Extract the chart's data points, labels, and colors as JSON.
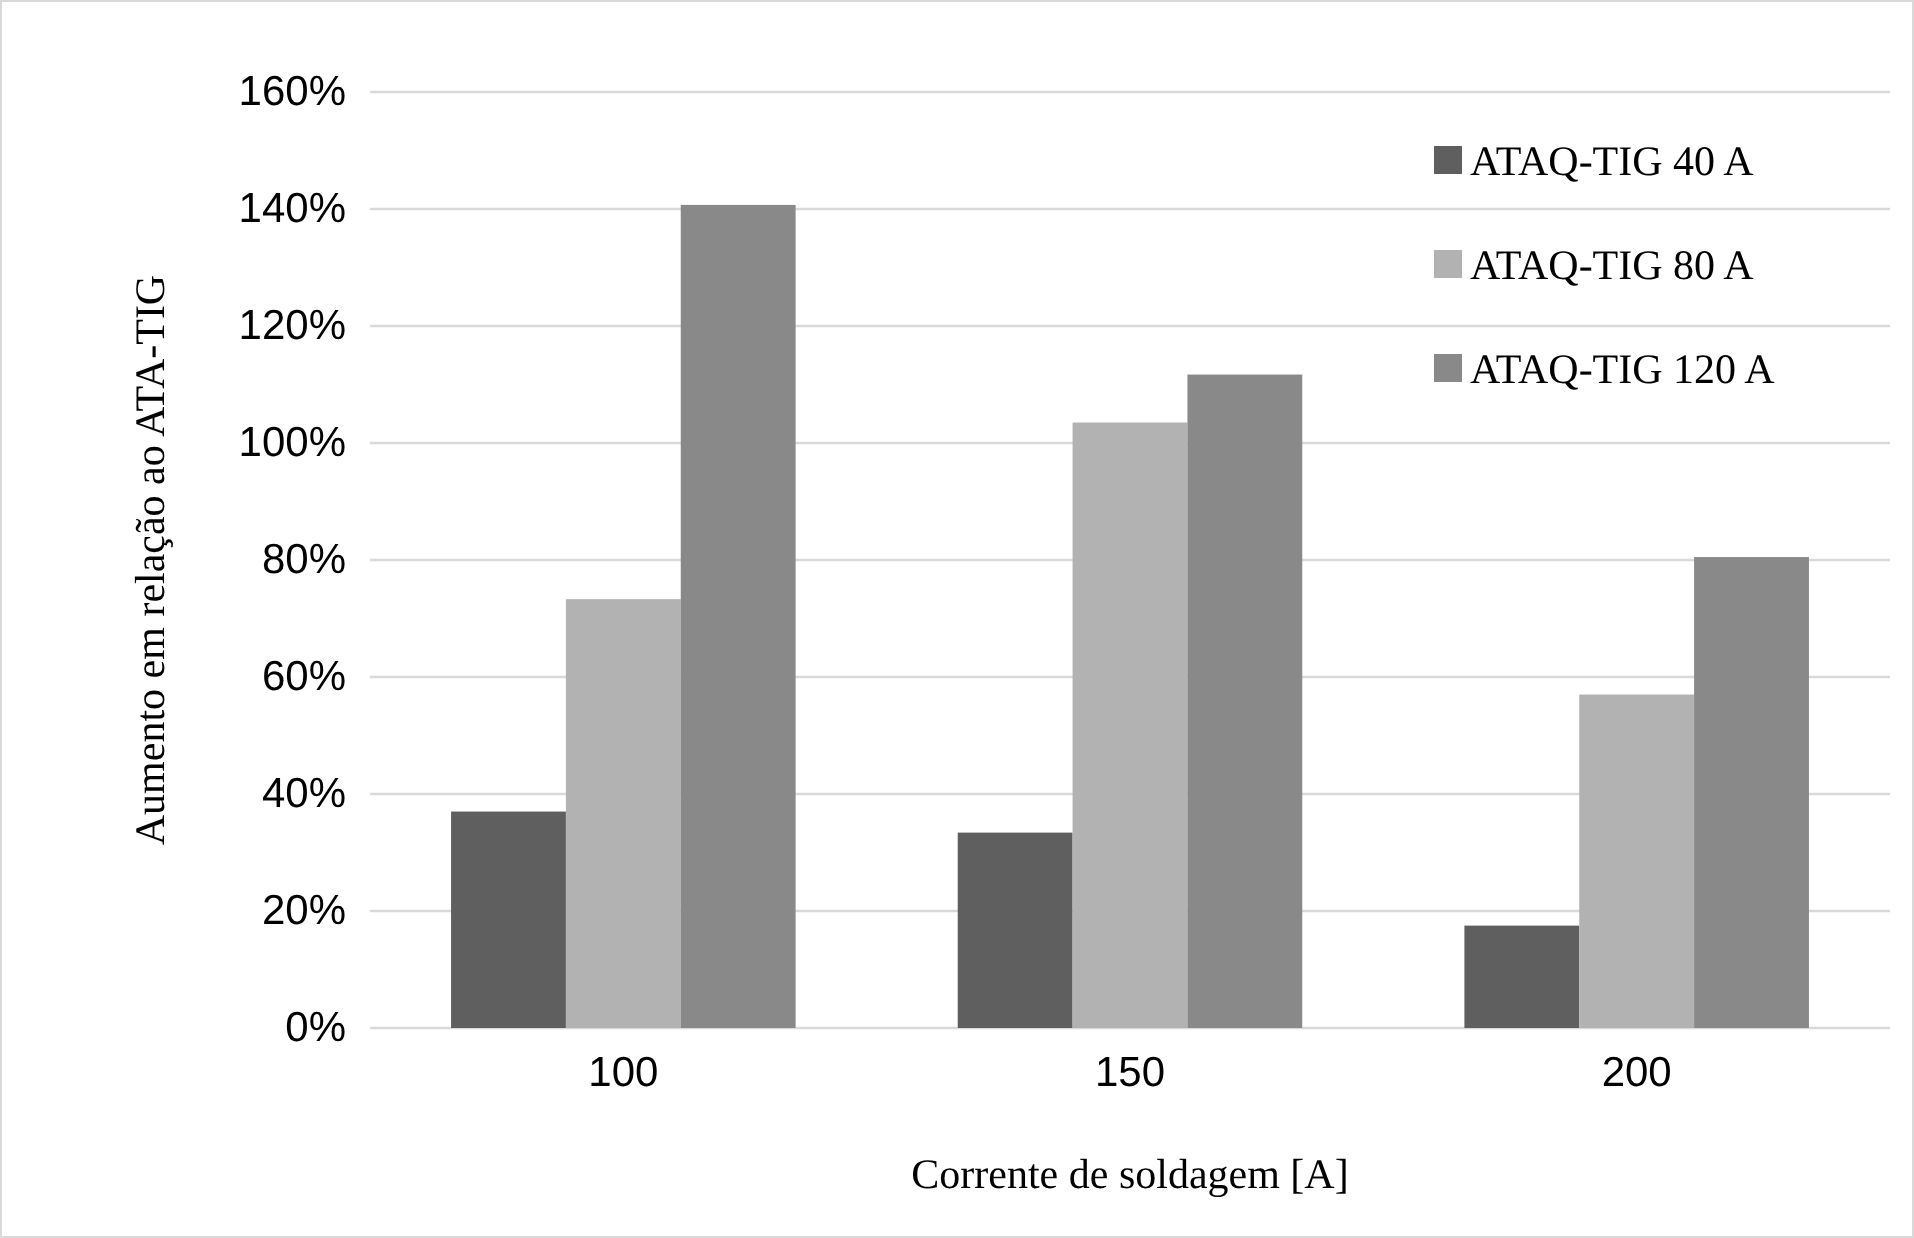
{
  "chart_data": {
    "type": "bar",
    "xlabel": "Corrente de soldagem [A]",
    "ylabel": "Aumento em relação ao ATA-TIG",
    "categories": [
      "100",
      "150",
      "200"
    ],
    "series": [
      {
        "name": "ATAQ-TIG 40 A",
        "color": "#5f5f5f",
        "values": [
          0.37,
          0.334,
          0.175
        ]
      },
      {
        "name": "ATAQ-TIG 80 A",
        "color": "#b2b2b2",
        "values": [
          0.733,
          1.035,
          0.57
        ]
      },
      {
        "name": "ATAQ-TIG 120 A",
        "color": "#898989",
        "values": [
          1.407,
          1.117,
          0.805
        ]
      }
    ],
    "ylim": [
      0,
      1.6
    ],
    "yticks": [
      {
        "value": 0,
        "label": "0%"
      },
      {
        "value": 0.2,
        "label": "20%"
      },
      {
        "value": 0.4,
        "label": "40%"
      },
      {
        "value": 0.6,
        "label": "60%"
      },
      {
        "value": 0.8,
        "label": "80%"
      },
      {
        "value": 1.0,
        "label": "100%"
      },
      {
        "value": 1.2,
        "label": "120%"
      },
      {
        "value": 1.4,
        "label": "140%"
      },
      {
        "value": 1.6,
        "label": "160%"
      }
    ],
    "grid": "y",
    "legend": "top right"
  }
}
